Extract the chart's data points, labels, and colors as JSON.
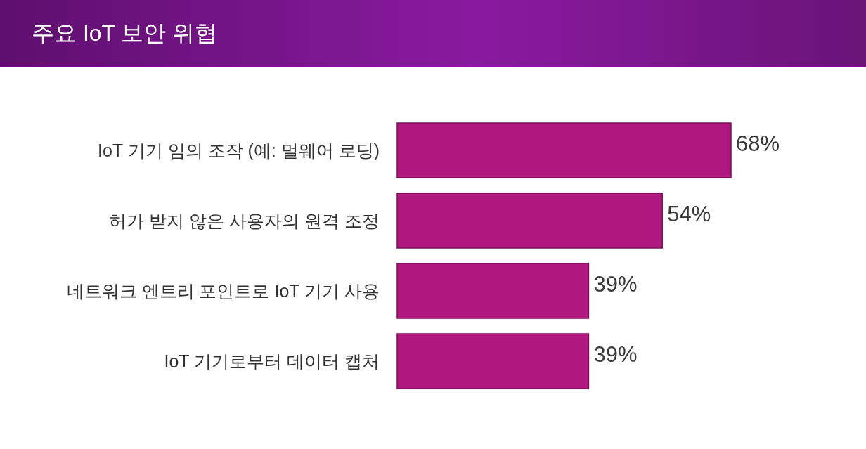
{
  "chart_data": {
    "type": "bar",
    "title": "주요 IoT 보안 위협",
    "orientation": "horizontal",
    "categories": [
      "IoT 기기 임의 조작 (예: 멀웨어 로딩)",
      "허가 받지 않은 사용자의 원격 조정",
      "네트워크 엔트리 포인트로 IoT 기기 사용",
      "IoT 기기로부터 데이터 캡처"
    ],
    "values": [
      68,
      54,
      39,
      39
    ],
    "value_labels": [
      "68%",
      "54%",
      "39%",
      "39%"
    ],
    "color": "#b0177f"
  }
}
